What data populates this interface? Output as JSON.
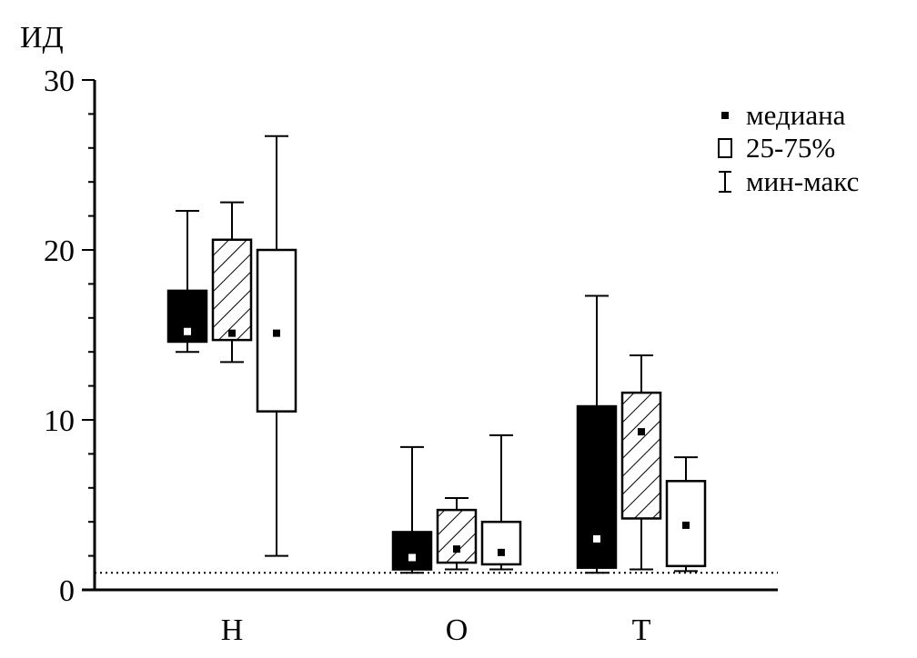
{
  "chart_data": {
    "type": "boxplot",
    "ylabel": "ИД",
    "xlabel": "",
    "ylim": [
      0,
      30
    ],
    "yticks": [
      0,
      10,
      20,
      30
    ],
    "categories": [
      "Н",
      "О",
      "Т"
    ],
    "reference_line": 1,
    "series": [
      {
        "name": "series-1",
        "fill": "solid",
        "color": "#000000",
        "boxes": [
          {
            "min": 14.0,
            "q1": 14.6,
            "median": 15.2,
            "q3": 17.6,
            "max": 22.3
          },
          {
            "min": 1.0,
            "q1": 1.2,
            "median": 1.9,
            "q3": 3.4,
            "max": 8.4
          },
          {
            "min": 1.0,
            "q1": 1.3,
            "median": 3.0,
            "q3": 10.8,
            "max": 17.3
          }
        ]
      },
      {
        "name": "series-2",
        "fill": "hatched",
        "color": "#000000",
        "boxes": [
          {
            "min": 13.4,
            "q1": 14.7,
            "median": 15.1,
            "q3": 20.6,
            "max": 22.8
          },
          {
            "min": 1.2,
            "q1": 1.6,
            "median": 2.4,
            "q3": 4.7,
            "max": 5.4
          },
          {
            "min": 1.2,
            "q1": 4.2,
            "median": 9.3,
            "q3": 11.6,
            "max": 13.8
          }
        ]
      },
      {
        "name": "series-3",
        "fill": "open",
        "color": "#000000",
        "boxes": [
          {
            "min": 2.0,
            "q1": 10.5,
            "median": 15.1,
            "q3": 20.0,
            "max": 26.7
          },
          {
            "min": 1.2,
            "q1": 1.5,
            "median": 2.2,
            "q3": 4.0,
            "max": 9.1
          },
          {
            "min": 1.1,
            "q1": 1.4,
            "median": 3.8,
            "q3": 6.4,
            "max": 7.8
          }
        ]
      }
    ],
    "legend": {
      "position": "top-right",
      "entries": [
        {
          "symbol": "square-dot",
          "label": "медиана"
        },
        {
          "symbol": "open-box",
          "label": "25-75%"
        },
        {
          "symbol": "whisker",
          "label": "мин-макс"
        }
      ]
    }
  }
}
